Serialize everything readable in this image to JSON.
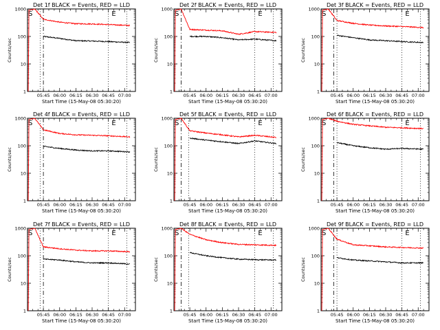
{
  "x_ticks": [
    "05:45",
    "06:00",
    "06:15",
    "06:30",
    "06:45",
    "07:00"
  ],
  "y_ticks": [
    "1",
    "10",
    "100",
    "1000"
  ],
  "xlabel": "Start Time (15-May-08 05:30:20)",
  "ylabel": "Counts/sec",
  "chart_data": [
    {
      "type": "line",
      "title": "Det 1f BLACK = Events, RED = LLD",
      "xlabel": "Start Time (15-May-08 05:30:20)",
      "ylabel": "Counts/sec",
      "yscale": "log",
      "ylim": [
        1,
        1000
      ],
      "xlim": [
        "05:30:20",
        "07:10"
      ],
      "x": [
        "05:37",
        "05:45",
        "06:00",
        "06:15",
        "06:30",
        "06:45",
        "07:05"
      ],
      "series": [
        {
          "name": "BLACK = Events",
          "color": "#000000",
          "values": [
            null,
            100,
            85,
            70,
            68,
            65,
            60
          ]
        },
        {
          "name": "RED = LLD",
          "color": "#ff0000",
          "values": [
            1000,
            420,
            330,
            290,
            285,
            270,
            250
          ]
        }
      ],
      "annotations": [
        {
          "text": "S",
          "x": "05:31"
        },
        {
          "text": "E",
          "x": "06:48"
        }
      ],
      "vlines": [
        {
          "x": "05:42",
          "style": "dotted"
        },
        {
          "x": "05:45",
          "style": "dashed"
        },
        {
          "x": "06:45",
          "style": "dotted"
        },
        {
          "x": "07:02",
          "style": "dotted"
        }
      ]
    },
    {
      "type": "line",
      "title": "Det 2f BLACK = Events, RED = LLD",
      "xlabel": "Start Time (15-May-08 05:30:20)",
      "ylabel": "Counts/sec",
      "yscale": "log",
      "ylim": [
        1,
        1000
      ],
      "xlim": [
        "05:30:20",
        "07:10"
      ],
      "x": [
        "05:37",
        "05:45",
        "06:00",
        "06:15",
        "06:30",
        "06:45",
        "07:05"
      ],
      "series": [
        {
          "name": "BLACK = Events",
          "color": "#000000",
          "values": [
            null,
            100,
            100,
            90,
            75,
            80,
            70
          ]
        },
        {
          "name": "RED = LLD",
          "color": "#ff0000",
          "values": [
            1000,
            180,
            170,
            160,
            120,
            150,
            140
          ]
        }
      ],
      "annotations": [
        {
          "text": "S",
          "x": "05:31"
        },
        {
          "text": "E",
          "x": "06:48"
        }
      ],
      "vlines": [
        {
          "x": "05:37",
          "style": "dashed"
        },
        {
          "x": "06:45",
          "style": "dotted"
        },
        {
          "x": "07:02",
          "style": "dotted"
        }
      ]
    },
    {
      "type": "line",
      "title": "Det 3f BLACK = Events, RED = LLD",
      "xlabel": "Start Time (15-May-08 05:30:20)",
      "ylabel": "Counts/sec",
      "yscale": "log",
      "ylim": [
        1,
        1000
      ],
      "xlim": [
        "05:30:20",
        "07:10"
      ],
      "x": [
        "05:37",
        "05:45",
        "06:00",
        "06:15",
        "06:30",
        "06:45",
        "07:05"
      ],
      "series": [
        {
          "name": "BLACK = Events",
          "color": "#000000",
          "values": [
            null,
            110,
            90,
            75,
            70,
            65,
            60
          ]
        },
        {
          "name": "RED = LLD",
          "color": "#ff0000",
          "values": [
            1000,
            380,
            300,
            260,
            240,
            230,
            210
          ]
        }
      ],
      "annotations": [
        {
          "text": "S",
          "x": "05:31"
        },
        {
          "text": "E",
          "x": "06:48"
        }
      ],
      "vlines": [
        {
          "x": "05:42",
          "style": "dashed"
        },
        {
          "x": "05:45",
          "style": "dotted"
        },
        {
          "x": "06:45",
          "style": "dotted"
        },
        {
          "x": "07:02",
          "style": "dotted"
        }
      ]
    },
    {
      "type": "line",
      "title": "Det 4f BLACK = Events, RED = LLD",
      "xlabel": "Start Time (15-May-08 05:30:20)",
      "ylabel": "Counts/sec",
      "yscale": "log",
      "ylim": [
        1,
        1000
      ],
      "xlim": [
        "05:30:20",
        "07:10"
      ],
      "x": [
        "05:37",
        "05:45",
        "06:00",
        "06:15",
        "06:30",
        "06:45",
        "07:05"
      ],
      "series": [
        {
          "name": "BLACK = Events",
          "color": "#000000",
          "values": [
            null,
            95,
            80,
            70,
            65,
            65,
            60
          ]
        },
        {
          "name": "RED = LLD",
          "color": "#ff0000",
          "values": [
            1000,
            380,
            280,
            250,
            240,
            230,
            210
          ]
        }
      ],
      "annotations": [
        {
          "text": "S",
          "x": "05:31"
        },
        {
          "text": "E",
          "x": "06:48"
        }
      ],
      "vlines": [
        {
          "x": "05:42",
          "style": "dotted"
        },
        {
          "x": "05:45",
          "style": "dashed"
        },
        {
          "x": "06:45",
          "style": "dotted"
        },
        {
          "x": "07:02",
          "style": "dotted"
        }
      ]
    },
    {
      "type": "line",
      "title": "Det 5f BLACK = Events, RED = LLD",
      "xlabel": "Start Time (15-May-08 05:30:20)",
      "ylabel": "Counts/sec",
      "yscale": "log",
      "ylim": [
        1,
        1000
      ],
      "xlim": [
        "05:30:20",
        "07:10"
      ],
      "x": [
        "05:37",
        "05:45",
        "06:00",
        "06:15",
        "06:30",
        "06:45",
        "07:05"
      ],
      "series": [
        {
          "name": "BLACK = Events",
          "color": "#000000",
          "values": [
            null,
            190,
            160,
            140,
            120,
            150,
            120
          ]
        },
        {
          "name": "RED = LLD",
          "color": "#ff0000",
          "values": [
            1000,
            350,
            290,
            250,
            210,
            240,
            200
          ]
        }
      ],
      "annotations": [
        {
          "text": "S",
          "x": "05:31"
        },
        {
          "text": "E",
          "x": "06:48"
        }
      ],
      "vlines": [
        {
          "x": "05:37",
          "style": "dashed"
        },
        {
          "x": "05:44",
          "style": "dotted"
        },
        {
          "x": "06:45",
          "style": "dotted"
        },
        {
          "x": "07:02",
          "style": "dotted"
        }
      ]
    },
    {
      "type": "line",
      "title": "Det 6f BLACK = Events, RED = LLD",
      "xlabel": "Start Time (15-May-08 05:30:20)",
      "ylabel": "Counts/sec",
      "yscale": "log",
      "ylim": [
        1,
        1000
      ],
      "xlim": [
        "05:30:20",
        "07:10"
      ],
      "x": [
        "05:37",
        "05:45",
        "06:00",
        "06:15",
        "06:30",
        "06:45",
        "07:05"
      ],
      "series": [
        {
          "name": "BLACK = Events",
          "color": "#000000",
          "values": [
            null,
            130,
            100,
            85,
            75,
            80,
            75
          ]
        },
        {
          "name": "RED = LLD",
          "color": "#ff0000",
          "values": [
            1000,
            780,
            600,
            530,
            470,
            450,
            420
          ]
        }
      ],
      "annotations": [
        {
          "text": "S",
          "x": "05:31"
        },
        {
          "text": "E",
          "x": "06:48"
        }
      ],
      "vlines": [
        {
          "x": "05:42",
          "style": "dashed"
        },
        {
          "x": "05:45",
          "style": "dotted"
        },
        {
          "x": "06:45",
          "style": "dotted"
        },
        {
          "x": "07:02",
          "style": "dotted"
        }
      ]
    },
    {
      "type": "line",
      "title": "Det 7f BLACK = Events, RED = LLD",
      "xlabel": "Start Time (15-May-08 05:30:20)",
      "ylabel": "Counts/sec",
      "yscale": "log",
      "ylim": [
        1,
        1000
      ],
      "xlim": [
        "05:30:20",
        "07:10"
      ],
      "x": [
        "05:37",
        "05:45",
        "06:00",
        "06:15",
        "06:30",
        "06:45",
        "07:05"
      ],
      "series": [
        {
          "name": "BLACK = Events",
          "color": "#000000",
          "values": [
            null,
            75,
            70,
            60,
            55,
            55,
            50
          ]
        },
        {
          "name": "RED = LLD",
          "color": "#ff0000",
          "values": [
            1000,
            210,
            180,
            160,
            150,
            150,
            140
          ]
        }
      ],
      "annotations": [
        {
          "text": "S",
          "x": "05:31"
        },
        {
          "text": "E",
          "x": "06:48"
        }
      ],
      "vlines": [
        {
          "x": "05:42",
          "style": "dotted"
        },
        {
          "x": "05:45",
          "style": "dashed"
        },
        {
          "x": "06:45",
          "style": "dotted"
        },
        {
          "x": "07:02",
          "style": "dotted"
        }
      ]
    },
    {
      "type": "line",
      "title": "Det 8f BLACK = Events, RED = LLD",
      "xlabel": "Start Time (15-May-08 05:30:20)",
      "ylabel": "Counts/sec",
      "yscale": "log",
      "ylim": [
        1,
        1000
      ],
      "xlim": [
        "05:30:20",
        "07:10"
      ],
      "x": [
        "05:37",
        "05:45",
        "06:00",
        "06:15",
        "06:30",
        "06:45",
        "07:05"
      ],
      "series": [
        {
          "name": "BLACK = Events",
          "color": "#000000",
          "values": [
            null,
            130,
            100,
            85,
            75,
            72,
            70
          ]
        },
        {
          "name": "RED = LLD",
          "color": "#ff0000",
          "values": [
            1000,
            600,
            380,
            300,
            260,
            250,
            240
          ]
        }
      ],
      "annotations": [
        {
          "text": "S",
          "x": "05:31"
        },
        {
          "text": "E",
          "x": "06:48"
        }
      ],
      "vlines": [
        {
          "x": "05:37",
          "style": "dashed"
        },
        {
          "x": "05:44",
          "style": "dotted"
        },
        {
          "x": "06:45",
          "style": "dotted"
        },
        {
          "x": "07:02",
          "style": "dotted"
        }
      ]
    },
    {
      "type": "line",
      "title": "Det 9f BLACK = Events, RED = LLD",
      "xlabel": "Start Time (15-May-08 05:30:20)",
      "ylabel": "Counts/sec",
      "yscale": "log",
      "ylim": [
        1,
        1000
      ],
      "xlim": [
        "05:30:20",
        "07:10"
      ],
      "x": [
        "05:37",
        "05:45",
        "06:00",
        "06:15",
        "06:30",
        "06:45",
        "07:05"
      ],
      "series": [
        {
          "name": "BLACK = Events",
          "color": "#000000",
          "values": [
            null,
            85,
            70,
            65,
            60,
            55,
            55
          ]
        },
        {
          "name": "RED = LLD",
          "color": "#ff0000",
          "values": [
            1000,
            400,
            250,
            230,
            210,
            200,
            190
          ]
        }
      ],
      "annotations": [
        {
          "text": "S",
          "x": "05:31"
        },
        {
          "text": "E",
          "x": "06:48"
        }
      ],
      "vlines": [
        {
          "x": "05:42",
          "style": "dashed"
        },
        {
          "x": "05:45",
          "style": "dotted"
        },
        {
          "x": "06:45",
          "style": "dotted"
        },
        {
          "x": "07:02",
          "style": "dotted"
        }
      ]
    }
  ]
}
